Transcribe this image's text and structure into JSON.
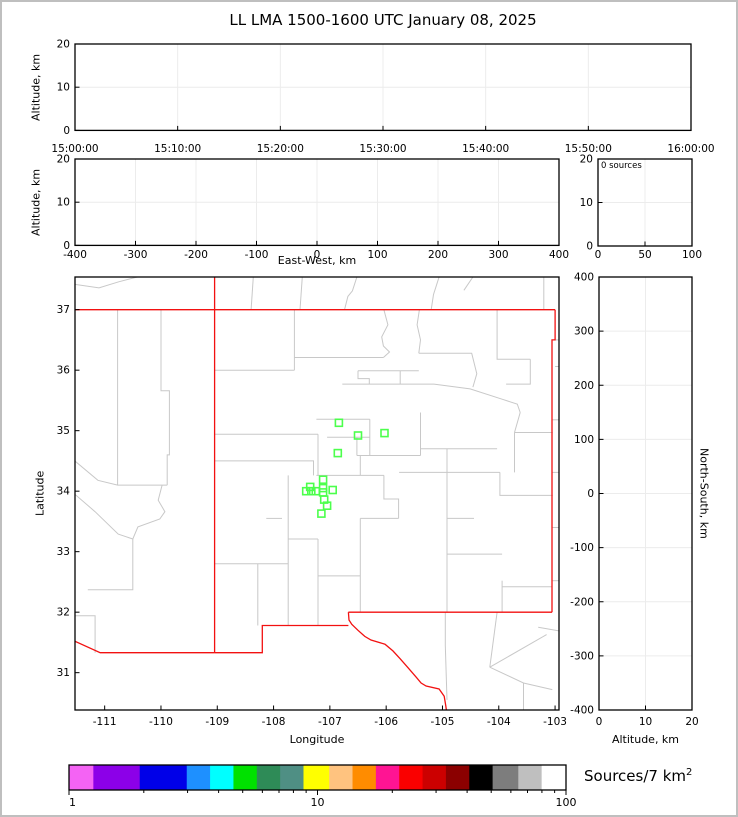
{
  "title": "LL LMA 1500-1600 UTC January 08, 2025",
  "panels": {
    "time_height": {
      "ylabel": "Altitude, km",
      "yticks": [
        0,
        10,
        20
      ],
      "xtick_labels": [
        "15:00:00",
        "15:10:00",
        "15:20:00",
        "15:30:00",
        "15:40:00",
        "15:50:00",
        "16:00:00"
      ]
    },
    "ew_height": {
      "ylabel": "Altitude, km",
      "xlabel": "East-West, km",
      "yticks": [
        0,
        10,
        20
      ],
      "xticks": [
        -400,
        -300,
        -200,
        -100,
        0,
        100,
        200,
        300,
        400
      ]
    },
    "stats": {
      "text": "0 sources",
      "xticks": [
        0,
        50,
        100
      ],
      "yticks": [
        0,
        10,
        20
      ]
    },
    "map": {
      "xlabel": "Longitude",
      "ylabel": "Latitude",
      "lonticks": [
        -111,
        -110,
        -109,
        -108,
        -107,
        -106,
        -105,
        -104,
        -103
      ],
      "latticks": [
        31,
        32,
        33,
        34,
        35,
        36,
        37
      ]
    },
    "ns_height": {
      "xlabel": "Altitude, km",
      "ylabel": "North-South, km",
      "xticks": [
        0,
        10,
        20
      ],
      "yticks": [
        400,
        300,
        200,
        100,
        0,
        -100,
        -200,
        -300,
        -400
      ]
    }
  },
  "colorbar": {
    "label": "Sources/7 km",
    "label_sup": "2",
    "tick_labels": [
      1,
      10,
      100
    ],
    "minor_ticks": [
      2,
      3,
      4,
      5,
      6,
      7,
      8,
      9,
      20,
      30,
      40,
      50,
      60,
      70,
      80,
      90
    ],
    "colors": [
      "#f463f4",
      "#8c00e8",
      "#0000e8",
      "#1e90ff",
      "#00ffff",
      "#00e100",
      "#2e8b57",
      "#4f8f84",
      "#ffff00",
      "#ffc37f",
      "#ff8c00",
      "#ff1493",
      "#fa0000",
      "#cc0000",
      "#8b0000",
      "#000000",
      "#7d7d7d",
      "#bfbfbf",
      "#ffffff"
    ],
    "widths": [
      73,
      139,
      141,
      70,
      70,
      70,
      70,
      70,
      77,
      70,
      70,
      70,
      70,
      70,
      70,
      70,
      77,
      70,
      73
    ]
  },
  "chart_data": {
    "type": "scatter",
    "title": "LL LMA 1500-1600 UTC January 08, 2025",
    "time_axis_range": [
      "15:00:00",
      "16:00:00"
    ],
    "altitude_range_km": [
      0,
      20
    ],
    "ew_range_km": [
      -400,
      400
    ],
    "ns_range_km": [
      -400,
      400
    ],
    "map_lon_range": [
      -111.53,
      -102.93
    ],
    "map_lat_range": [
      30.38,
      37.54
    ],
    "source_count_text": "0 sources",
    "colorbar_range": [
      1,
      100
    ],
    "points_lonlat": [
      [
        -106.84,
        35.13
      ],
      [
        -106.5,
        34.92
      ],
      [
        -106.03,
        34.96
      ],
      [
        -106.86,
        34.63
      ],
      [
        -107.12,
        34.19
      ],
      [
        -107.35,
        34.07
      ],
      [
        -107.42,
        34.0
      ],
      [
        -107.33,
        34.0
      ],
      [
        -107.25,
        34.0
      ],
      [
        -107.12,
        34.05
      ],
      [
        -107.12,
        33.98
      ],
      [
        -106.95,
        34.02
      ],
      [
        -107.1,
        33.86
      ],
      [
        -107.05,
        33.76
      ],
      [
        -107.15,
        33.63
      ]
    ],
    "point_color": "#4cff4c",
    "state_border_color": "#f21111",
    "county_line_color": "#c8c8c8",
    "state_lines": [
      [
        [
          -111.53,
          37.0
        ],
        [
          -103.0,
          37.0
        ]
      ],
      [
        [
          -109.048,
          37.54
        ],
        [
          -109.048,
          31.33
        ]
      ],
      [
        [
          -103.0,
          37.0
        ],
        [
          -103.0,
          36.5
        ],
        [
          -103.055,
          36.5
        ],
        [
          -103.055,
          32.0
        ]
      ],
      [
        [
          -103.055,
          32.0
        ],
        [
          -106.67,
          32.0
        ]
      ],
      [
        [
          -106.67,
          31.78
        ],
        [
          -108.2,
          31.78
        ],
        [
          -108.2,
          31.33
        ],
        [
          -109.048,
          31.33
        ]
      ],
      [
        [
          -109.048,
          31.33
        ],
        [
          -111.08,
          31.33
        ],
        [
          -111.53,
          31.52
        ]
      ],
      [
        [
          -106.67,
          32.0
        ],
        [
          -106.66,
          31.87
        ],
        [
          -106.61,
          31.8
        ],
        [
          -106.5,
          31.7
        ],
        [
          -106.38,
          31.6
        ],
        [
          -106.27,
          31.54
        ],
        [
          -106.02,
          31.47
        ],
        [
          -105.88,
          31.36
        ],
        [
          -105.75,
          31.23
        ],
        [
          -105.61,
          31.08
        ],
        [
          -105.47,
          30.93
        ],
        [
          -105.38,
          30.83
        ],
        [
          -105.29,
          30.78
        ],
        [
          -105.06,
          30.73
        ],
        [
          -104.97,
          30.61
        ],
        [
          -104.94,
          30.45
        ],
        [
          -104.93,
          30.38
        ]
      ]
    ],
    "county_lines": [
      [
        [
          -111.53,
          37.42
        ],
        [
          -111.1,
          37.36
        ],
        [
          -110.75,
          37.46
        ],
        [
          -110.42,
          37.54
        ]
      ],
      [
        [
          -108.4,
          37.0
        ],
        [
          -108.36,
          37.54
        ]
      ],
      [
        [
          -107.53,
          37.0
        ],
        [
          -107.49,
          37.54
        ]
      ],
      [
        [
          -106.74,
          37.0
        ],
        [
          -106.68,
          37.22
        ],
        [
          -106.6,
          37.31
        ],
        [
          -106.52,
          37.54
        ]
      ],
      [
        [
          -105.2,
          37.0
        ],
        [
          -105.16,
          37.25
        ],
        [
          -105.06,
          37.54
        ]
      ],
      [
        [
          -104.62,
          37.32
        ],
        [
          -104.46,
          37.54
        ]
      ],
      [
        [
          -103.2,
          37.0
        ],
        [
          -103.2,
          37.54
        ]
      ],
      [
        [
          -103.0,
          36.5
        ],
        [
          -102.93,
          36.5
        ]
      ],
      [
        [
          -110.77,
          37.0
        ],
        [
          -110.77,
          34.1
        ]
      ],
      [
        [
          -110.0,
          37.0
        ],
        [
          -110.0,
          35.66
        ],
        [
          -109.85,
          35.66
        ],
        [
          -109.85,
          34.6
        ],
        [
          -109.89,
          34.6
        ],
        [
          -109.89,
          34.1
        ]
      ],
      [
        [
          -111.53,
          34.5
        ],
        [
          -111.12,
          34.18
        ],
        [
          -110.77,
          34.1
        ],
        [
          -109.89,
          34.1
        ]
      ],
      [
        [
          -111.53,
          33.95
        ],
        [
          -111.17,
          33.66
        ],
        [
          -110.76,
          33.29
        ],
        [
          -110.5,
          33.21
        ],
        [
          -110.41,
          33.41
        ],
        [
          -110.02,
          33.54
        ],
        [
          -109.93,
          33.66
        ],
        [
          -110.05,
          33.85
        ],
        [
          -109.98,
          34.1
        ]
      ],
      [
        [
          -110.5,
          33.21
        ],
        [
          -110.5,
          32.37
        ],
        [
          -111.3,
          32.37
        ]
      ],
      [
        [
          -111.53,
          31.94
        ],
        [
          -111.17,
          31.94
        ],
        [
          -111.17,
          31.33
        ]
      ],
      [
        [
          -109.048,
          36.0
        ],
        [
          -107.63,
          36.0
        ]
      ],
      [
        [
          -107.63,
          37.0
        ],
        [
          -107.63,
          36.0
        ]
      ],
      [
        [
          -107.63,
          36.21
        ],
        [
          -106.05,
          36.21
        ]
      ],
      [
        [
          -106.04,
          37.0
        ],
        [
          -105.97,
          36.75
        ],
        [
          -106.08,
          36.55
        ],
        [
          -106.05,
          36.4
        ],
        [
          -105.94,
          36.3
        ],
        [
          -106.05,
          36.21
        ]
      ],
      [
        [
          -105.41,
          37.0
        ],
        [
          -105.45,
          36.75
        ],
        [
          -105.39,
          36.5
        ],
        [
          -105.42,
          36.28
        ]
      ],
      [
        [
          -105.42,
          36.28
        ],
        [
          -104.48,
          36.28
        ],
        [
          -104.39,
          35.94
        ],
        [
          -104.46,
          35.72
        ]
      ],
      [
        [
          -104.03,
          37.0
        ],
        [
          -104.03,
          36.18
        ],
        [
          -103.44,
          36.18
        ]
      ],
      [
        [
          -103.44,
          36.18
        ],
        [
          -103.44,
          35.77
        ],
        [
          -103.87,
          35.77
        ]
      ],
      [
        [
          -106.78,
          35.77
        ],
        [
          -105.15,
          35.77
        ],
        [
          -104.51,
          35.69
        ],
        [
          -103.94,
          35.52
        ],
        [
          -103.67,
          35.44
        ],
        [
          -103.62,
          35.3
        ]
      ],
      [
        [
          -106.5,
          35.99
        ],
        [
          -105.42,
          35.99
        ]
      ],
      [
        [
          -106.5,
          35.99
        ],
        [
          -106.5,
          35.86
        ],
        [
          -106.3,
          35.86
        ],
        [
          -106.3,
          35.77
        ]
      ],
      [
        [
          -105.75,
          35.99
        ],
        [
          -105.75,
          35.77
        ]
      ],
      [
        [
          -107.24,
          35.19
        ],
        [
          -106.29,
          35.19
        ]
      ],
      [
        [
          -107.05,
          34.89
        ],
        [
          -106.29,
          34.89
        ]
      ],
      [
        [
          -106.52,
          34.89
        ],
        [
          -106.52,
          34.59
        ]
      ],
      [
        [
          -106.52,
          34.59
        ],
        [
          -105.39,
          34.59
        ]
      ],
      [
        [
          -106.29,
          35.19
        ],
        [
          -106.29,
          34.59
        ]
      ],
      [
        [
          -106.46,
          34.59
        ],
        [
          -106.46,
          34.26
        ]
      ],
      [
        [
          -107.24,
          34.26
        ],
        [
          -106.04,
          34.26
        ]
      ],
      [
        [
          -109.048,
          34.5
        ],
        [
          -107.29,
          34.5
        ],
        [
          -107.29,
          34.26
        ]
      ],
      [
        [
          -109.048,
          34.94
        ],
        [
          -107.21,
          34.94
        ]
      ],
      [
        [
          -107.21,
          34.94
        ],
        [
          -107.21,
          34.26
        ]
      ],
      [
        [
          -106.04,
          34.26
        ],
        [
          -106.04,
          33.87
        ],
        [
          -105.78,
          33.87
        ],
        [
          -105.78,
          33.55
        ]
      ],
      [
        [
          -106.46,
          33.55
        ],
        [
          -105.78,
          33.55
        ]
      ],
      [
        [
          -106.46,
          33.55
        ],
        [
          -106.46,
          32.0
        ]
      ],
      [
        [
          -107.74,
          34.26
        ],
        [
          -107.74,
          31.78
        ]
      ],
      [
        [
          -107.74,
          33.21
        ],
        [
          -107.21,
          33.21
        ]
      ],
      [
        [
          -109.048,
          32.8
        ],
        [
          -107.74,
          32.8
        ]
      ],
      [
        [
          -108.28,
          32.8
        ],
        [
          -108.28,
          31.78
        ]
      ],
      [
        [
          -108.13,
          33.55
        ],
        [
          -107.85,
          33.55
        ]
      ],
      [
        [
          -107.21,
          33.21
        ],
        [
          -107.21,
          31.78
        ]
      ],
      [
        [
          -107.21,
          32.6
        ],
        [
          -106.46,
          32.6
        ]
      ],
      [
        [
          -105.77,
          34.31
        ],
        [
          -103.98,
          34.31
        ]
      ],
      [
        [
          -103.98,
          34.31
        ],
        [
          -103.98,
          33.93
        ],
        [
          -103.04,
          33.93
        ]
      ],
      [
        [
          -103.72,
          34.97
        ],
        [
          -103.04,
          34.97
        ]
      ],
      [
        [
          -103.72,
          34.97
        ],
        [
          -103.72,
          34.31
        ]
      ],
      [
        [
          -103.62,
          35.3
        ],
        [
          -103.72,
          34.97
        ]
      ],
      [
        [
          -104.92,
          34.7
        ],
        [
          -104.92,
          32.0
        ]
      ],
      [
        [
          -105.39,
          34.7
        ],
        [
          -104.03,
          34.7
        ]
      ],
      [
        [
          -105.39,
          35.3
        ],
        [
          -105.39,
          34.59
        ]
      ],
      [
        [
          -104.92,
          32.96
        ],
        [
          -103.94,
          32.96
        ]
      ],
      [
        [
          -103.94,
          32.52
        ],
        [
          -103.94,
          32.0
        ]
      ],
      [
        [
          -103.94,
          32.42
        ],
        [
          -103.055,
          32.42
        ]
      ],
      [
        [
          -104.92,
          33.55
        ],
        [
          -104.44,
          33.55
        ]
      ],
      [
        [
          -104.95,
          32.0
        ],
        [
          -104.95,
          31.45
        ],
        [
          -104.92,
          30.55
        ]
      ],
      [
        [
          -104.03,
          32.0
        ],
        [
          -104.16,
          31.09
        ]
      ],
      [
        [
          -104.16,
          31.09
        ],
        [
          -103.56,
          30.83
        ],
        [
          -103.05,
          30.72
        ]
      ],
      [
        [
          -104.16,
          31.09
        ],
        [
          -103.15,
          31.63
        ]
      ],
      [
        [
          -103.56,
          30.83
        ],
        [
          -103.56,
          30.38
        ]
      ],
      [
        [
          -103.055,
          35.18
        ],
        [
          -102.93,
          35.18
        ]
      ],
      [
        [
          -103.055,
          34.31
        ],
        [
          -102.93,
          34.31
        ]
      ],
      [
        [
          -103.0,
          36.06
        ],
        [
          -102.93,
          36.06
        ]
      ],
      [
        [
          -103.055,
          33.4
        ],
        [
          -102.93,
          33.4
        ]
      ],
      [
        [
          -103.055,
          32.52
        ],
        [
          -102.93,
          32.52
        ]
      ],
      [
        [
          -103.3,
          31.75
        ],
        [
          -102.93,
          31.69
        ]
      ]
    ]
  }
}
